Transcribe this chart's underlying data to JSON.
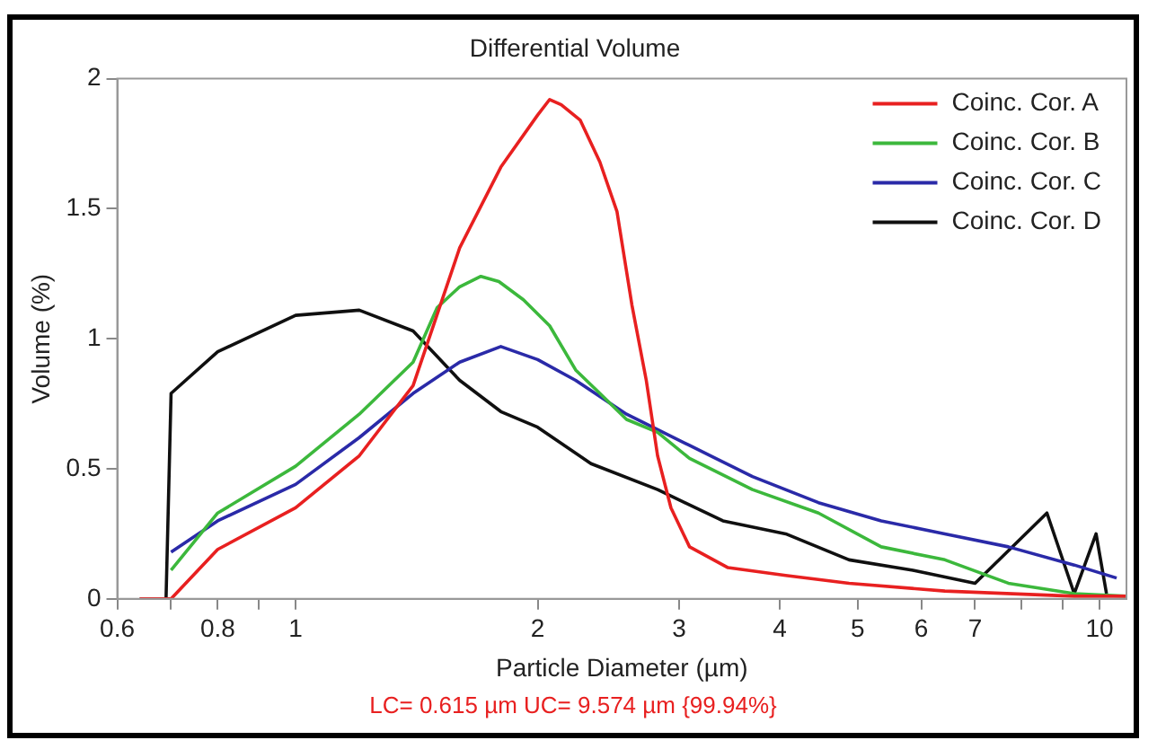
{
  "chart_data": {
    "type": "line",
    "title": "Differential Volume",
    "xlabel": "Particle Diameter (µm)",
    "ylabel": "Volume (%)",
    "log": "x",
    "grid": false,
    "legend": "top right",
    "marker": "none",
    "line_style": "solid",
    "xlim": [
      0.6,
      10.8
    ],
    "ylim": [
      0,
      2
    ],
    "xticks": [
      0.6,
      {
        "value": 0.7,
        "label": null
      },
      0.8,
      {
        "value": 0.9,
        "label": null
      },
      1,
      2,
      3,
      4,
      5,
      6,
      7,
      {
        "value": 8,
        "label": null
      },
      {
        "value": 9,
        "label": null
      },
      10
    ],
    "yticks": [
      0,
      0.5,
      1,
      1.5,
      2
    ],
    "annotations": [
      "LC= 0.615 µm   UC= 9.574 µm {99.94%}"
    ],
    "series": [
      {
        "name": "Coinc. Cor. A",
        "color": "#e82020",
        "x": [
          0.64,
          0.7,
          0.8,
          1,
          1.2,
          1.4,
          1.6,
          1.8,
          2,
          2.07,
          2.14,
          2.26,
          2.39,
          2.51,
          2.62,
          2.73,
          2.82,
          2.93,
          3.09,
          3.45,
          4.07,
          4.88,
          6.42,
          9.3,
          10.8
        ],
        "values": [
          0,
          0,
          0.19,
          0.35,
          0.55,
          0.82,
          1.35,
          1.66,
          1.86,
          1.92,
          1.9,
          1.84,
          1.68,
          1.49,
          1.13,
          0.84,
          0.55,
          0.35,
          0.2,
          0.12,
          0.09,
          0.06,
          0.03,
          0.01,
          0.01
        ]
      },
      {
        "name": "Coinc. Cor. B",
        "color": "#3cb83c",
        "x": [
          0.7,
          0.8,
          1,
          1.2,
          1.4,
          1.5,
          1.6,
          1.7,
          1.79,
          1.92,
          2.07,
          2.23,
          2.39,
          2.58,
          2.82,
          3.09,
          3.7,
          4.47,
          5.35,
          6.42,
          7.7,
          9.3,
          10.8
        ],
        "values": [
          0.11,
          0.33,
          0.51,
          0.71,
          0.91,
          1.12,
          1.2,
          1.24,
          1.22,
          1.15,
          1.05,
          0.88,
          0.79,
          0.69,
          0.64,
          0.54,
          0.42,
          0.33,
          0.2,
          0.15,
          0.06,
          0.02,
          0.01
        ]
      },
      {
        "name": "Coinc. Cor. C",
        "color": "#2a2aa8",
        "x": [
          0.7,
          0.8,
          1,
          1.2,
          1.4,
          1.6,
          1.8,
          2,
          2.23,
          2.58,
          3.09,
          3.7,
          4.47,
          5.35,
          6.42,
          7.7,
          9.3,
          10.5
        ],
        "values": [
          0.18,
          0.3,
          0.44,
          0.62,
          0.79,
          0.91,
          0.97,
          0.92,
          0.84,
          0.71,
          0.59,
          0.47,
          0.37,
          0.3,
          0.25,
          0.2,
          0.13,
          0.08
        ]
      },
      {
        "name": "Coinc. Cor. D",
        "color": "#101010",
        "x": [
          0.64,
          0.69,
          0.7,
          0.8,
          1,
          1.2,
          1.4,
          1.6,
          1.8,
          2,
          2.33,
          2.82,
          3.4,
          4.07,
          4.88,
          5.86,
          7,
          8.6,
          9.3,
          9.9,
          10.2
        ],
        "values": [
          0,
          0,
          0.79,
          0.95,
          1.09,
          1.11,
          1.03,
          0.84,
          0.72,
          0.66,
          0.52,
          0.42,
          0.3,
          0.25,
          0.15,
          0.11,
          0.06,
          0.33,
          0.02,
          0.25,
          0.02
        ]
      }
    ]
  }
}
